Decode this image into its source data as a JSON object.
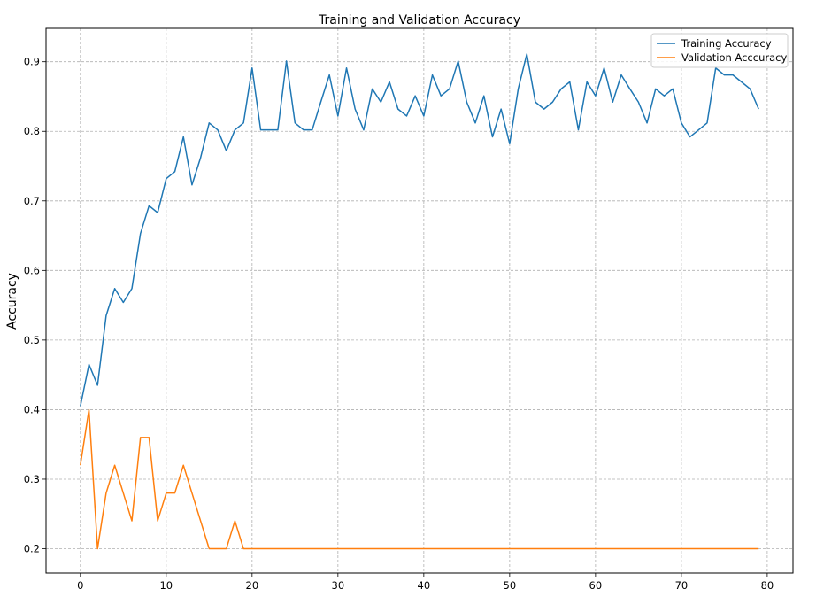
{
  "chart_data": {
    "type": "line",
    "title": "Training and Validation Accuracy",
    "xlabel": "",
    "ylabel": "Accuracy",
    "xlim": [
      -4,
      83
    ],
    "ylim": [
      0.165,
      0.948
    ],
    "xticks": [
      0,
      10,
      20,
      30,
      40,
      50,
      60,
      70,
      80
    ],
    "yticks": [
      0.2,
      0.3,
      0.4,
      0.5,
      0.6,
      0.7,
      0.8,
      0.9
    ],
    "grid": true,
    "legend_position": "top-right",
    "series": [
      {
        "name": "Training Accuracy",
        "color": "#1f77b4",
        "x": [
          0,
          1,
          2,
          3,
          4,
          5,
          6,
          7,
          8,
          9,
          10,
          11,
          12,
          13,
          14,
          15,
          16,
          17,
          18,
          19,
          20,
          21,
          22,
          23,
          24,
          25,
          26,
          27,
          28,
          29,
          30,
          31,
          32,
          33,
          34,
          35,
          36,
          37,
          38,
          39,
          40,
          41,
          42,
          43,
          44,
          45,
          46,
          47,
          48,
          49,
          50,
          51,
          52,
          53,
          54,
          55,
          56,
          57,
          58,
          59,
          60,
          61,
          62,
          63,
          64,
          65,
          66,
          67,
          68,
          69,
          70,
          71,
          72,
          73,
          74,
          75,
          76,
          77,
          78,
          79
        ],
        "values": [
          0.405,
          0.465,
          0.435,
          0.535,
          0.574,
          0.554,
          0.574,
          0.653,
          0.693,
          0.683,
          0.732,
          0.742,
          0.792,
          0.723,
          0.762,
          0.812,
          0.802,
          0.772,
          0.802,
          0.812,
          0.891,
          0.802,
          0.802,
          0.802,
          0.901,
          0.812,
          0.802,
          0.802,
          0.842,
          0.881,
          0.822,
          0.891,
          0.832,
          0.802,
          0.861,
          0.842,
          0.871,
          0.832,
          0.822,
          0.851,
          0.822,
          0.881,
          0.851,
          0.861,
          0.901,
          0.842,
          0.812,
          0.851,
          0.792,
          0.832,
          0.782,
          0.861,
          0.911,
          0.842,
          0.832,
          0.842,
          0.861,
          0.871,
          0.802,
          0.871,
          0.851,
          0.891,
          0.842,
          0.881,
          0.861,
          0.842,
          0.812,
          0.861,
          0.851,
          0.861,
          0.812,
          0.792,
          0.802,
          0.812,
          0.891,
          0.881,
          0.881,
          0.871,
          0.861,
          0.832
        ]
      },
      {
        "name": "Validation Acccuracy",
        "color": "#ff7f0e",
        "x": [
          0,
          1,
          2,
          3,
          4,
          5,
          6,
          7,
          8,
          9,
          10,
          11,
          12,
          13,
          14,
          15,
          16,
          17,
          18,
          19,
          20,
          21,
          22,
          23,
          24,
          25,
          26,
          27,
          28,
          29,
          30,
          31,
          32,
          33,
          34,
          35,
          36,
          37,
          38,
          39,
          40,
          41,
          42,
          43,
          44,
          45,
          46,
          47,
          48,
          49,
          50,
          51,
          52,
          53,
          54,
          55,
          56,
          57,
          58,
          59,
          60,
          61,
          62,
          63,
          64,
          65,
          66,
          67,
          68,
          69,
          70,
          71,
          72,
          73,
          74,
          75,
          76,
          77,
          78,
          79
        ],
        "values": [
          0.32,
          0.4,
          0.2,
          0.28,
          0.32,
          0.28,
          0.24,
          0.36,
          0.36,
          0.24,
          0.28,
          0.28,
          0.32,
          0.28,
          0.24,
          0.2,
          0.2,
          0.2,
          0.24,
          0.2,
          0.2,
          0.2,
          0.2,
          0.2,
          0.2,
          0.2,
          0.2,
          0.2,
          0.2,
          0.2,
          0.2,
          0.2,
          0.2,
          0.2,
          0.2,
          0.2,
          0.2,
          0.2,
          0.2,
          0.2,
          0.2,
          0.2,
          0.2,
          0.2,
          0.2,
          0.2,
          0.2,
          0.2,
          0.2,
          0.2,
          0.2,
          0.2,
          0.2,
          0.2,
          0.2,
          0.2,
          0.2,
          0.2,
          0.2,
          0.2,
          0.2,
          0.2,
          0.2,
          0.2,
          0.2,
          0.2,
          0.2,
          0.2,
          0.2,
          0.2,
          0.2,
          0.2,
          0.2,
          0.2,
          0.2,
          0.2,
          0.2,
          0.2,
          0.2,
          0.2
        ]
      }
    ]
  }
}
